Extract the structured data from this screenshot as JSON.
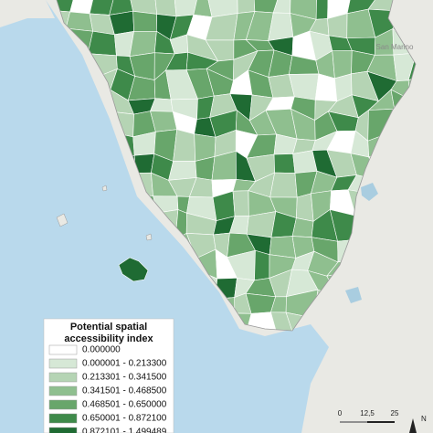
{
  "map_labels": {
    "place": "San Marino"
  },
  "legend": {
    "title_line1": "Potential spatial",
    "title_line2": "accessibility index",
    "items": [
      {
        "label": "0.000000",
        "color": "#ffffff"
      },
      {
        "label": "0.000001 - 0.213300",
        "color": "#d6e8d6"
      },
      {
        "label": "0.213301 - 0.341500",
        "color": "#b5d4b4"
      },
      {
        "label": "0.341501 - 0.468500",
        "color": "#8fbf8f"
      },
      {
        "label": "0.468501 - 0.650000",
        "color": "#68a66b"
      },
      {
        "label": "0.650001 - 0.872100",
        "color": "#3e8a4a"
      },
      {
        "label": "0.872101 - 1.499489",
        "color": "#1f6b33"
      }
    ]
  },
  "scale_bar": {
    "labels": [
      "0",
      "12,5",
      "25"
    ]
  },
  "north_arrow": {
    "label": "N"
  }
}
